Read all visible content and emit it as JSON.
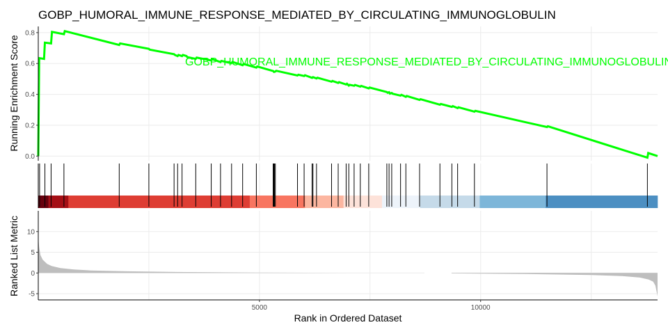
{
  "chart_data": {
    "type": "line",
    "title": "GOBP_HUMORAL_IMMUNE_RESPONSE_MEDIATED_BY_CIRCULATING_IMMUNOGLOBULIN",
    "xlabel": "Rank in Ordered Dataset",
    "xlim": [
      0,
      14000
    ],
    "xticks": [
      5000,
      10000
    ],
    "x_tick_labels": [
      "5000",
      "10000"
    ],
    "running_es": {
      "ylabel": "Running Enrichment Score",
      "ylim": [
        -0.03,
        0.84
      ],
      "yticks": [
        0.0,
        0.2,
        0.4,
        0.6,
        0.8
      ],
      "y_tick_labels": [
        "0.0",
        "0.2",
        "0.4",
        "0.6",
        "0.8"
      ],
      "series": [
        {
          "name": "GOBP_HUMORAL_IMMUNE_RESPONSE_MEDIATED_BY_CIRCULATING_IMMUNOGLOBULIN",
          "color": "#00ff00",
          "x": [
            0,
            20,
            130,
            150,
            290,
            310,
            580,
            600,
            1830,
            1850,
            2500,
            2520,
            3070,
            3090,
            3150,
            3170,
            3250,
            3270,
            3350,
            3370,
            3560,
            3580,
            3910,
            3930,
            4120,
            4140,
            4370,
            4390,
            4620,
            4640,
            4930,
            4950,
            5310,
            5330,
            5360,
            5380,
            5860,
            5880,
            6010,
            6030,
            6190,
            6210,
            6290,
            6310,
            6630,
            6650,
            6780,
            6800,
            6960,
            6980,
            7020,
            7040,
            7140,
            7160,
            7280,
            7300,
            7470,
            7490,
            7880,
            7900,
            7930,
            7950,
            7990,
            8010,
            8190,
            8210,
            8310,
            8330,
            8620,
            8640,
            9080,
            9100,
            9350,
            9370,
            9480,
            9500,
            9860,
            9880,
            11500,
            11520,
            13770,
            13790,
            14000
          ],
          "y": [
            0.0,
            0.635,
            0.63,
            0.735,
            0.73,
            0.805,
            0.79,
            0.81,
            0.72,
            0.73,
            0.695,
            0.69,
            0.66,
            0.655,
            0.648,
            0.655,
            0.648,
            0.655,
            0.648,
            0.641,
            0.63,
            0.638,
            0.62,
            0.628,
            0.609,
            0.617,
            0.602,
            0.61,
            0.589,
            0.597,
            0.573,
            0.581,
            0.551,
            0.545,
            0.548,
            0.553,
            0.522,
            0.527,
            0.519,
            0.524,
            0.507,
            0.512,
            0.503,
            0.508,
            0.482,
            0.487,
            0.474,
            0.479,
            0.464,
            0.469,
            0.457,
            0.462,
            0.456,
            0.461,
            0.45,
            0.455,
            0.439,
            0.444,
            0.415,
            0.41,
            0.414,
            0.405,
            0.409,
            0.404,
            0.392,
            0.397,
            0.384,
            0.389,
            0.364,
            0.369,
            0.333,
            0.338,
            0.319,
            0.324,
            0.311,
            0.316,
            0.288,
            0.293,
            0.188,
            0.193,
            -0.01,
            0.02,
            0.0
          ]
        }
      ]
    },
    "gene_hits": {
      "x": [
        30,
        150,
        290,
        580,
        1830,
        2500,
        3070,
        3150,
        3250,
        3560,
        3910,
        4120,
        4370,
        4620,
        4930,
        5310,
        5320,
        5330,
        5340,
        5360,
        5860,
        6010,
        6190,
        6210,
        6290,
        6630,
        6780,
        6960,
        7020,
        7140,
        7280,
        7470,
        7880,
        7930,
        7990,
        8190,
        8310,
        8620,
        9080,
        9350,
        9480,
        9860,
        11500,
        13770
      ]
    },
    "color_bar": {
      "segments": [
        {
          "from": 0,
          "to": 230,
          "color": "#67000d"
        },
        {
          "from": 230,
          "to": 680,
          "color": "#a50f15"
        },
        {
          "from": 680,
          "to": 4780,
          "color": "#de3d33"
        },
        {
          "from": 4780,
          "to": 6030,
          "color": "#f87560"
        },
        {
          "from": 6030,
          "to": 6900,
          "color": "#fcb6a0"
        },
        {
          "from": 6900,
          "to": 7770,
          "color": "#fde2d9"
        },
        {
          "from": 7770,
          "to": 8630,
          "color": "#edf3fa"
        },
        {
          "from": 8630,
          "to": 9980,
          "color": "#c5dae9"
        },
        {
          "from": 9980,
          "to": 11470,
          "color": "#7db6d9"
        },
        {
          "from": 11470,
          "to": 14000,
          "color": "#4c8fc2"
        }
      ]
    },
    "ranked_list": {
      "ylabel": "Ranked List Metric",
      "ylim": [
        -6.5,
        15
      ],
      "yticks": [
        -5,
        0,
        5,
        10
      ],
      "y_tick_labels": [
        "-5",
        "0",
        "5",
        "10"
      ],
      "color": "#bebebe",
      "x": [
        0,
        20,
        50,
        100,
        200,
        300,
        500,
        800,
        1200,
        2000,
        3000,
        5000,
        7000,
        8720,
        8740,
        9330,
        9350,
        11000,
        12500,
        13200,
        13600,
        13800,
        13900,
        13950,
        14000
      ],
      "y": [
        8.5,
        6.2,
        4.3,
        3.2,
        2.2,
        1.7,
        1.2,
        0.85,
        0.6,
        0.4,
        0.25,
        0.1,
        0.0,
        0.0,
        0.0,
        0.0,
        -0.1,
        -0.25,
        -0.5,
        -0.75,
        -1.1,
        -1.6,
        -2.1,
        -3.0,
        -5.6
      ]
    }
  }
}
